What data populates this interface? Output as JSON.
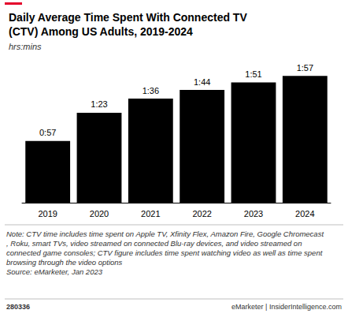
{
  "chart_data": {
    "type": "bar",
    "title": "Daily Average Time Spent With Connected TV\n(CTV) Among US Adults, 2019-2024",
    "subtitle": "hrs:mins",
    "categories": [
      "2019",
      "2020",
      "2021",
      "2022",
      "2023",
      "2024"
    ],
    "values": [
      57,
      83,
      96,
      104,
      111,
      117
    ],
    "value_labels": [
      "0:57",
      "1:23",
      "1:36",
      "1:44",
      "1:51",
      "1:57"
    ],
    "color": "#000000",
    "data_labels": true,
    "tick_labels": "x",
    "grid": false,
    "annotations": [
      "Note: CTV time includes time spent on Apple TV, Xfinity Flex, Amazon Fire, Google Chromecast, Roku, smart TVs, video streamed on connected Blu-ray devices, and video streamed on connected game consoles; CTV figure includes time spent watching video as well as time spent browsing through the video options",
      "Source: eMarketer, Jan 2023",
      "280336",
      "eMarketer | InsiderIntelligence.com"
    ]
  }
}
